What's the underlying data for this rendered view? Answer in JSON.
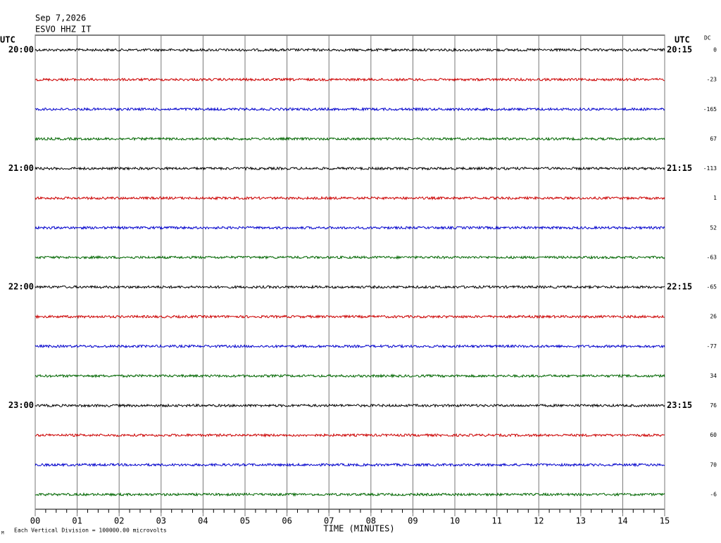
{
  "header": {
    "date": "Sep 7,2026",
    "station": "ESVO HHZ IT"
  },
  "left_title": "UTC",
  "right_title": "UTC",
  "dc_title": "DC",
  "left_labels": [
    "20:00",
    "21:00",
    "22:00",
    "23:00"
  ],
  "right_labels": [
    "20:15",
    "21:15",
    "22:15",
    "23:15"
  ],
  "trace_colors": [
    "#000000",
    "#cc0000",
    "#0000cc",
    "#006600"
  ],
  "dc_offsets": [
    0,
    -23,
    -165,
    67,
    -113,
    1,
    52,
    -63,
    -65,
    26,
    -77,
    34,
    76,
    60,
    70,
    -6
  ],
  "x_axis": {
    "title": "TIME (MINUTES)",
    "xlim": [
      0,
      15
    ],
    "ticks": [
      {
        "value": 0,
        "label": "00"
      },
      {
        "value": 1,
        "label": "01"
      },
      {
        "value": 2,
        "label": "02"
      },
      {
        "value": 3,
        "label": "03"
      },
      {
        "value": 4,
        "label": "04"
      },
      {
        "value": 5,
        "label": "05"
      },
      {
        "value": 6,
        "label": "06"
      },
      {
        "value": 7,
        "label": "07"
      },
      {
        "value": 8,
        "label": "08"
      },
      {
        "value": 9,
        "label": "09"
      },
      10,
      11,
      12,
      13,
      14,
      15
    ]
  },
  "footer": {
    "mark": "M",
    "scale_note": "Each Vertical Division = 100000.00 microvolts"
  }
}
